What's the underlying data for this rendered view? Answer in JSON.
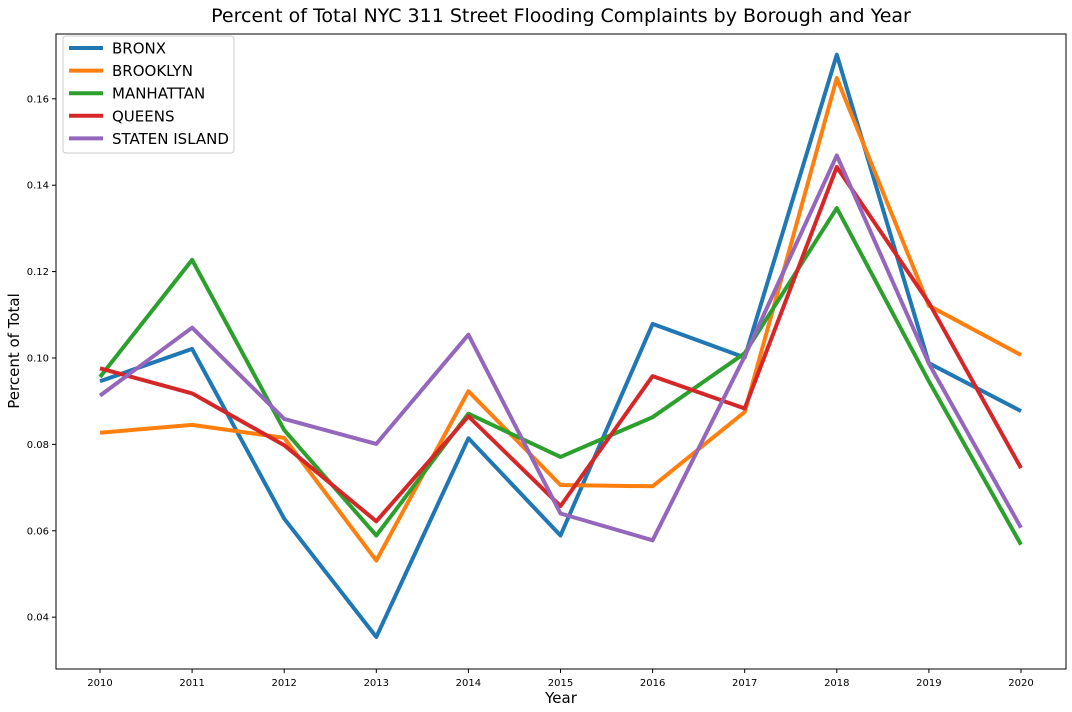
{
  "chart_data": {
    "type": "line",
    "title": "Percent of Total NYC 311 Street Flooding Complaints by Borough and Year",
    "xlabel": "Year",
    "ylabel": "Percent of Total",
    "x": [
      2010,
      2011,
      2012,
      2013,
      2014,
      2015,
      2016,
      2017,
      2018,
      2019,
      2020
    ],
    "x_tick_labels": [
      "2010",
      "2011",
      "2012",
      "2013",
      "2014",
      "2015",
      "2016",
      "2017",
      "2018",
      "2019",
      "2020"
    ],
    "ylim": [
      0.028,
      0.175
    ],
    "y_ticks": [
      0.04,
      0.06,
      0.08,
      0.1,
      0.12,
      0.14,
      0.16
    ],
    "y_tick_labels": [
      "0.04",
      "0.06",
      "0.08",
      "0.10",
      "0.12",
      "0.14",
      "0.16"
    ],
    "grid": false,
    "legend_position": "top-left",
    "series": [
      {
        "name": "BRONX",
        "color": "#1f77b4",
        "values": [
          0.0946,
          0.1021,
          0.0628,
          0.0354,
          0.0814,
          0.0589,
          0.1079,
          0.1001,
          0.1702,
          0.0988,
          0.0877
        ]
      },
      {
        "name": "BROOKLYN",
        "color": "#ff7f0e",
        "values": [
          0.0827,
          0.0845,
          0.0815,
          0.0531,
          0.0923,
          0.0706,
          0.0703,
          0.0875,
          0.1648,
          0.1121,
          0.1007
        ]
      },
      {
        "name": "MANHATTAN",
        "color": "#2ca02c",
        "values": [
          0.0956,
          0.1227,
          0.0833,
          0.0589,
          0.0871,
          0.0771,
          0.0863,
          0.1011,
          0.1347,
          0.0946,
          0.0568
        ]
      },
      {
        "name": "QUEENS",
        "color": "#d62728",
        "values": [
          0.0976,
          0.0918,
          0.0798,
          0.0622,
          0.0865,
          0.0657,
          0.0958,
          0.0883,
          0.1442,
          0.1128,
          0.0745
        ]
      },
      {
        "name": "STATEN ISLAND",
        "color": "#9467bd",
        "values": [
          0.0913,
          0.107,
          0.0859,
          0.0801,
          0.1054,
          0.064,
          0.0578,
          0.1004,
          0.1469,
          0.0987,
          0.0607
        ]
      }
    ]
  }
}
